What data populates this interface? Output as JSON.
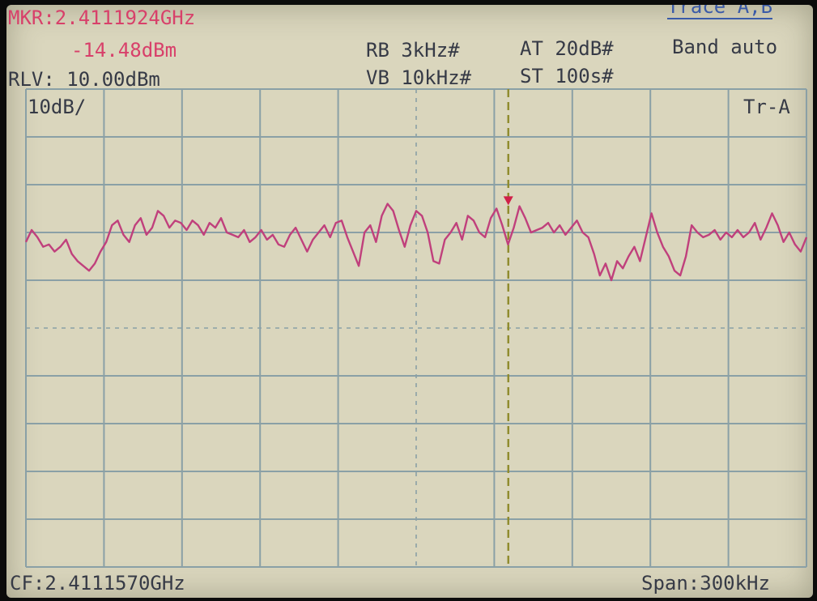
{
  "header": {
    "marker_freq": "MKR:2.4111924GHz",
    "marker_level": "-14.48dBm",
    "ref_level": "RLV: 10.00dBm",
    "rbw": "RB 3kHz#",
    "vbw": "VB 10kHz#",
    "attenuation": "AT 20dB#",
    "sweep_time": "ST 100s#",
    "trace_menu": "Trace A,B",
    "band": "Band auto"
  },
  "grid": {
    "scale_label": "10dB/",
    "trace_label": "Tr-A"
  },
  "footer": {
    "center_freq": "CF:2.4111570GHz",
    "span": "Span:300kHz"
  },
  "colors": {
    "screen": "#dad6bd",
    "grid": "#8aa0a6",
    "trace": "#c0407c",
    "marker": "#d02048",
    "marker_line": "#8e8a2c",
    "text_red": "#d8406a",
    "text_dark": "#363a46",
    "text_blue": "#3a5aa8"
  },
  "chart_data": {
    "type": "line",
    "x_unit": "GHz",
    "y_unit": "dBm",
    "ref_level_dbm": 10,
    "db_per_div": 10,
    "ylim": [
      -90,
      10
    ],
    "xlim": [
      2.411007,
      2.411307
    ],
    "center_freq": 2.411157,
    "span_khz": 300,
    "grid": true,
    "marker": {
      "x": 2.4111924,
      "y": -14.48
    },
    "series": [
      {
        "values": [
          -22.0,
          -19.5,
          -21.0,
          -23.0,
          -22.5,
          -24.0,
          -23.0,
          -21.5,
          -24.5,
          -26.0,
          -27.0,
          -28.0,
          -26.5,
          -24.0,
          -22.0,
          -18.5,
          -17.5,
          -20.5,
          -22.0,
          -18.5,
          -17.0,
          -20.5,
          -19.0,
          -15.5,
          -16.5,
          -19.0,
          -17.5,
          -18.0,
          -19.5,
          -17.5,
          -18.5,
          -20.5,
          -18.0,
          -19.0,
          -17.0,
          -20.0,
          -20.5,
          -21.0,
          -19.5,
          -22.0,
          -21.0,
          -19.5,
          -21.5,
          -20.5,
          -22.5,
          -23.0,
          -20.5,
          -19.0,
          -21.5,
          -24.0,
          -21.5,
          -20.0,
          -18.5,
          -21.0,
          -18.0,
          -17.5,
          -21.0,
          -24.0,
          -27.0,
          -20.0,
          -18.5,
          -22.0,
          -16.5,
          -14.0,
          -15.5,
          -19.5,
          -23.0,
          -18.5,
          -15.5,
          -16.5,
          -20.0,
          -26.0,
          -26.5,
          -21.5,
          -20.0,
          -18.0,
          -21.5,
          -16.5,
          -17.5,
          -20.0,
          -21.0,
          -17.0,
          -15.0,
          -18.5,
          -22.5,
          -19.0,
          -14.5,
          -17.0,
          -20.0,
          -19.5,
          -19.0,
          -18.0,
          -20.0,
          -18.5,
          -20.5,
          -19.0,
          -17.5,
          -20.0,
          -21.0,
          -24.5,
          -29.0,
          -26.5,
          -30.0,
          -26.0,
          -27.5,
          -25.0,
          -23.0,
          -26.0,
          -21.0,
          -16.0,
          -20.0,
          -23.0,
          -25.0,
          -28.0,
          -29.0,
          -25.0,
          -18.5,
          -20.0,
          -21.0,
          -20.5,
          -19.5,
          -21.5,
          -20.0,
          -21.0,
          -19.5,
          -21.0,
          -20.0,
          -18.0,
          -21.5,
          -19.0,
          -16.0,
          -18.5,
          -22.0,
          -20.0,
          -22.5,
          -24.0,
          -21.0
        ]
      }
    ]
  }
}
